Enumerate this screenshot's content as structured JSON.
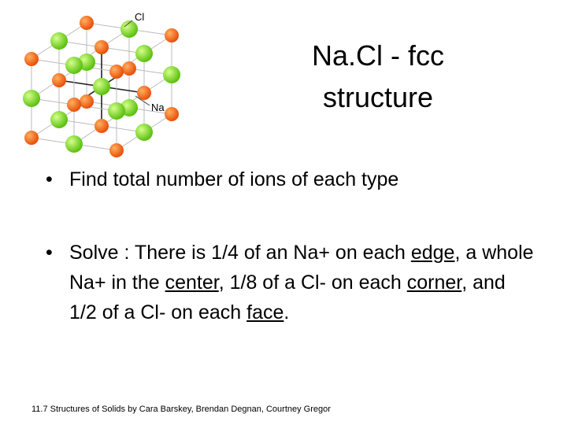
{
  "diagram": {
    "labels": {
      "cl": "Cl",
      "na": "Na"
    }
  },
  "title": {
    "lines": [
      "Na.Cl - fcc",
      "structure"
    ]
  },
  "bullets": [
    {
      "segments": [
        "Find total number of ions of each type"
      ]
    },
    {
      "segments": [
        "Solve : There is 1/4 of an Na+ on each ",
        {
          "text": "edge",
          "underline": true
        },
        ", a whole Na+ in the ",
        {
          "text": "center",
          "underline": true
        },
        ", 1/8 of a Cl- on each ",
        {
          "text": "corner",
          "underline": true
        },
        ", and 1/2 of a Cl- on each ",
        {
          "text": "face",
          "underline": true
        },
        "."
      ]
    }
  ],
  "footer": "11.7 Structures of Solids by Cara Barskey, Brendan Degnan, Courtney Gregor"
}
